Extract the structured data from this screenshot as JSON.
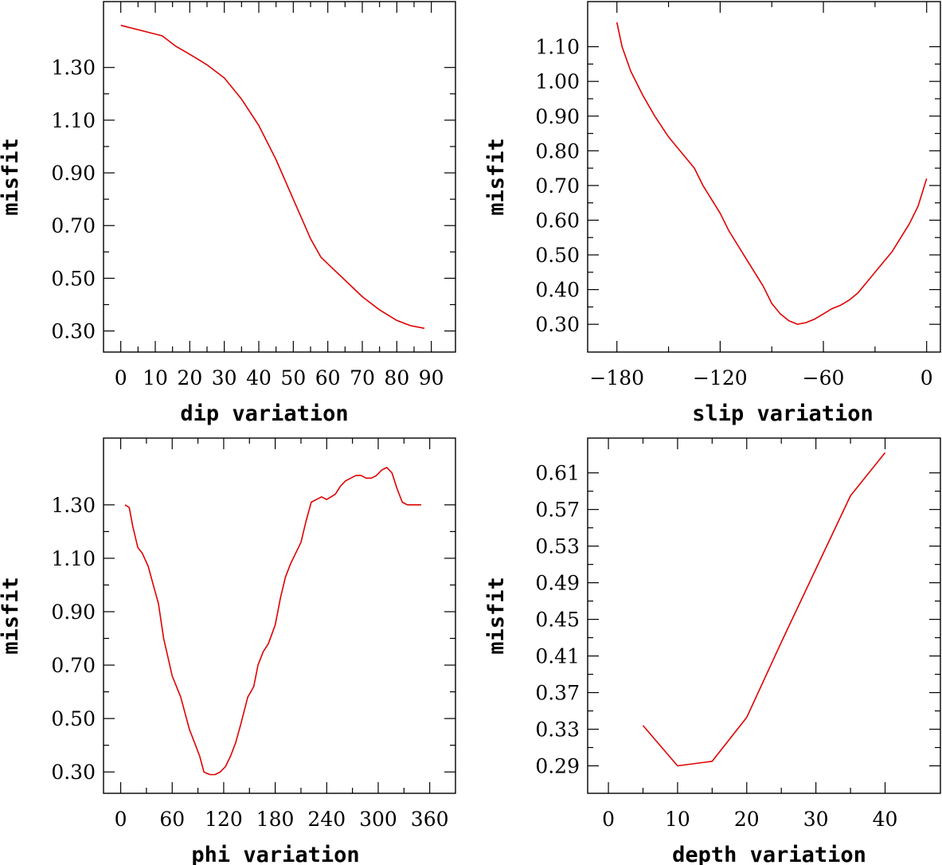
{
  "chart_data": [
    {
      "type": "line",
      "xlabel": "dip    variation",
      "ylabel": "misfit",
      "xlim": [
        -5,
        97
      ],
      "ylim": [
        0.22,
        1.55
      ],
      "xticks": [
        0,
        10,
        20,
        30,
        40,
        50,
        60,
        70,
        80,
        90
      ],
      "xtick_labels": [
        "0",
        "10",
        "20",
        "30",
        "40",
        "50",
        "60",
        "70",
        "80",
        "90"
      ],
      "yticks": [
        0.3,
        0.5,
        0.7,
        0.9,
        1.1,
        1.3
      ],
      "ytick_labels": [
        "0.30",
        "0.50",
        "0.70",
        "0.90",
        "1.10",
        "1.30"
      ],
      "series": [
        {
          "name": "dip",
          "x": [
            0,
            6,
            12,
            16,
            20,
            25,
            30,
            35,
            40,
            45,
            50,
            55,
            58,
            62,
            66,
            70,
            75,
            80,
            84,
            88
          ],
          "y": [
            1.46,
            1.44,
            1.42,
            1.38,
            1.35,
            1.31,
            1.26,
            1.18,
            1.08,
            0.95,
            0.8,
            0.65,
            0.58,
            0.53,
            0.48,
            0.43,
            0.38,
            0.34,
            0.32,
            0.31
          ]
        }
      ]
    },
    {
      "type": "line",
      "xlabel": "slip   variation",
      "ylabel": "misfit",
      "xlim": [
        -197,
        8
      ],
      "ylim": [
        0.22,
        1.23
      ],
      "xticks": [
        -180,
        -120,
        -60,
        0
      ],
      "xtick_labels": [
        "−180",
        "−120",
        "−60",
        "0"
      ],
      "yticks": [
        0.3,
        0.4,
        0.5,
        0.6,
        0.7,
        0.8,
        0.9,
        1.0,
        1.1
      ],
      "ytick_labels": [
        "0.30",
        "0.40",
        "0.50",
        "0.60",
        "0.70",
        "0.80",
        "0.90",
        "1.00",
        "1.10"
      ],
      "series": [
        {
          "name": "slip",
          "x": [
            -180,
            -177,
            -172,
            -165,
            -158,
            -150,
            -145,
            -140,
            -135,
            -130,
            -125,
            -120,
            -115,
            -110,
            -105,
            -100,
            -95,
            -90,
            -85,
            -80,
            -75,
            -70,
            -65,
            -60,
            -55,
            -50,
            -45,
            -40,
            -35,
            -30,
            -25,
            -20,
            -15,
            -10,
            -5,
            0
          ],
          "y": [
            1.17,
            1.1,
            1.03,
            0.96,
            0.9,
            0.84,
            0.81,
            0.78,
            0.75,
            0.7,
            0.66,
            0.62,
            0.57,
            0.53,
            0.49,
            0.45,
            0.41,
            0.36,
            0.33,
            0.31,
            0.3,
            0.305,
            0.315,
            0.33,
            0.345,
            0.355,
            0.37,
            0.39,
            0.42,
            0.45,
            0.48,
            0.51,
            0.55,
            0.59,
            0.64,
            0.72
          ]
        }
      ]
    },
    {
      "type": "line",
      "xlabel": "phi    variation",
      "ylabel": "misfit",
      "xlim": [
        -20,
        390
      ],
      "ylim": [
        0.22,
        1.55
      ],
      "xticks": [
        0,
        60,
        120,
        180,
        240,
        300,
        360
      ],
      "xtick_labels": [
        "0",
        "60",
        "120",
        "180",
        "240",
        "300",
        "360"
      ],
      "yticks": [
        0.3,
        0.5,
        0.7,
        0.9,
        1.1,
        1.3
      ],
      "ytick_labels": [
        "0.30",
        "0.50",
        "0.70",
        "0.90",
        "1.10",
        "1.30"
      ],
      "series": [
        {
          "name": "phi",
          "x": [
            5,
            10,
            14,
            20,
            25,
            32,
            38,
            44,
            50,
            55,
            60,
            65,
            70,
            75,
            80,
            86,
            92,
            97,
            100,
            104,
            110,
            116,
            122,
            128,
            134,
            140,
            148,
            155,
            160,
            166,
            172,
            180,
            186,
            192,
            198,
            204,
            210,
            216,
            222,
            228,
            234,
            240,
            245,
            250,
            256,
            262,
            268,
            274,
            280,
            286,
            292,
            298,
            304,
            310,
            316,
            322,
            328,
            334,
            340,
            350
          ],
          "y": [
            1.3,
            1.29,
            1.22,
            1.14,
            1.12,
            1.07,
            1.0,
            0.93,
            0.8,
            0.73,
            0.66,
            0.62,
            0.58,
            0.52,
            0.46,
            0.41,
            0.36,
            0.3,
            0.295,
            0.29,
            0.29,
            0.3,
            0.32,
            0.36,
            0.41,
            0.48,
            0.58,
            0.62,
            0.7,
            0.75,
            0.78,
            0.85,
            0.95,
            1.03,
            1.08,
            1.12,
            1.16,
            1.24,
            1.31,
            1.32,
            1.33,
            1.32,
            1.33,
            1.34,
            1.37,
            1.39,
            1.4,
            1.41,
            1.41,
            1.4,
            1.4,
            1.41,
            1.43,
            1.44,
            1.42,
            1.36,
            1.31,
            1.3,
            1.3,
            1.3
          ]
        }
      ]
    },
    {
      "type": "line",
      "xlabel": "depth   variation",
      "ylabel": "misfit",
      "xlim": [
        -3,
        48
      ],
      "ylim": [
        0.26,
        0.648
      ],
      "xticks": [
        0,
        10,
        20,
        30,
        40
      ],
      "xtick_labels": [
        "0",
        "10",
        "20",
        "30",
        "40"
      ],
      "yticks": [
        0.29,
        0.33,
        0.37,
        0.41,
        0.45,
        0.49,
        0.53,
        0.57,
        0.61
      ],
      "ytick_labels": [
        "0.29",
        "0.33",
        "0.37",
        "0.41",
        "0.45",
        "0.49",
        "0.53",
        "0.57",
        "0.61"
      ],
      "series": [
        {
          "name": "depth",
          "x": [
            5,
            10,
            15,
            20,
            25,
            30,
            35,
            40
          ],
          "y": [
            0.334,
            0.29,
            0.295,
            0.343,
            0.425,
            0.505,
            0.585,
            0.632
          ]
        }
      ]
    }
  ]
}
